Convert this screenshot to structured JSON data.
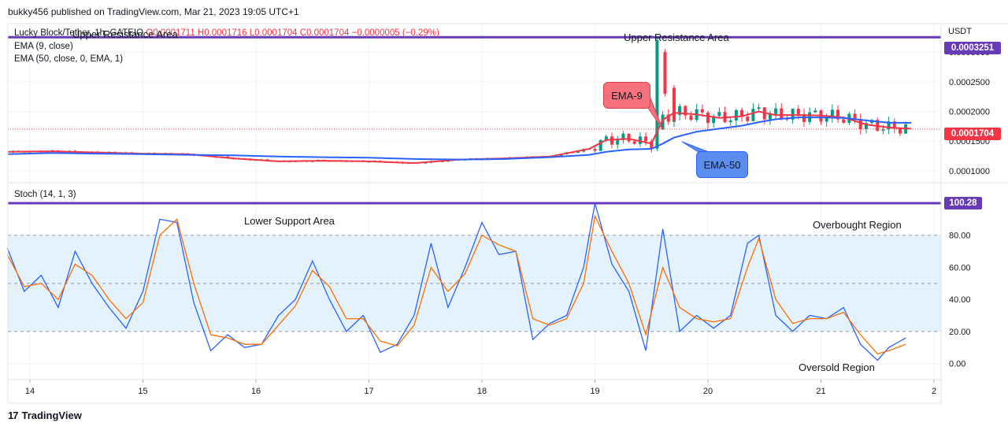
{
  "header": {
    "published": "bukky456 published on TradingView.com, Mar 21, 2023 19:05 UTC+1"
  },
  "legend": {
    "symbol_line": "Lucky Block/Tether, 1h, GATEIO",
    "ohlc_line": "O0.0001711 H0.0001716 L0.0001704 C0.0001704 −0.0000005 (−0.29%)",
    "ema9": "EMA (9, close)",
    "ema50": "EMA (50, close, 0, EMA, 1)",
    "stoch": "Stoch (14, 1, 3)"
  },
  "annotations": {
    "upper_left": "Upper Resistance Area",
    "upper_right": "Upper Resistance Area",
    "ema9_callout": "EMA-9",
    "ema50_callout": "EMA-50",
    "lower_support": "Lower Support Area",
    "overbought": "Overbought Region",
    "oversold": "Oversold Region"
  },
  "price_axis": {
    "currency": "USDT",
    "resistance_tag": "0.0003251",
    "last_price_tag": "0.0001704",
    "stoch_tag": "100.28"
  },
  "colors": {
    "ema9": "#f23645",
    "ema50": "#2962ff",
    "stoch_k": "#2962ff",
    "stoch_d": "#ff6d00",
    "resistance": "#673ab7",
    "bull": "#089981",
    "bear": "#f23645",
    "band": "#e3f2fd"
  },
  "footer": {
    "brand": "TradingView"
  },
  "chart_data": [
    {
      "type": "line",
      "title": "Lucky Block/Tether, 1h, GATEIO",
      "xlabel": "",
      "ylabel": "USDT",
      "x_ticks": [
        "14",
        "15",
        "16",
        "17",
        "18",
        "19",
        "20",
        "21",
        "2"
      ],
      "y_ticks": [
        "0.0003000",
        "0.0002500",
        "0.0002000",
        "0.0001500",
        "0.0001000"
      ],
      "ylim": [
        8e-05,
        0.000348
      ],
      "horizontal_lines": [
        {
          "value": 0.0003251
        }
      ],
      "last_price": 0.0001704,
      "x": [
        13.8,
        14.2,
        14.6,
        15.0,
        15.4,
        15.8,
        16.2,
        16.6,
        17.0,
        17.4,
        17.8,
        18.2,
        18.6,
        18.95,
        19.1,
        19.3,
        19.5,
        19.6,
        19.7,
        19.9,
        20.1,
        20.3,
        20.45,
        20.6,
        20.8,
        21.0,
        21.2,
        21.4,
        21.6,
        21.8
      ],
      "series": [
        {
          "name": "EMA (9, close)",
          "values": [
            0.000132,
            0.000133,
            0.000131,
            0.000129,
            0.000128,
            0.000121,
            0.000116,
            0.000117,
            0.000116,
            0.000113,
            0.000119,
            0.000121,
            0.000124,
            0.000137,
            0.000152,
            0.000154,
            0.000146,
            0.000186,
            0.000198,
            0.000195,
            0.000189,
            0.000192,
            0.0002,
            0.000194,
            0.000194,
            0.000193,
            0.00019,
            0.000178,
            0.000173,
            0.000171
          ]
        },
        {
          "name": "EMA (50, close, 0, EMA, 1)",
          "values": [
            0.000128,
            0.00013,
            0.000129,
            0.000128,
            0.000127,
            0.000126,
            0.000124,
            0.000123,
            0.000122,
            0.00012,
            0.000119,
            0.00012,
            0.000123,
            0.000127,
            0.000132,
            0.000136,
            0.000137,
            0.000146,
            0.000156,
            0.000166,
            0.000171,
            0.000176,
            0.000182,
            0.000187,
            0.00019,
            0.00019,
            0.000189,
            0.000185,
            0.000181,
            0.000181
          ]
        }
      ]
    },
    {
      "type": "line",
      "title": "Stoch (14, 1, 3)",
      "xlabel": "",
      "ylabel": "",
      "y_ticks": [
        "80.00",
        "60.00",
        "40.00",
        "20.00",
        "0.00"
      ],
      "ylim": [
        -10,
        100
      ],
      "bands": [
        20,
        50,
        80
      ],
      "x_ticks": [
        "14",
        "15",
        "16",
        "17",
        "18",
        "19",
        "20",
        "21",
        "2"
      ],
      "x": [
        13.8,
        13.95,
        14.1,
        14.25,
        14.4,
        14.55,
        14.7,
        14.85,
        15.0,
        15.15,
        15.3,
        15.45,
        15.6,
        15.75,
        15.9,
        16.05,
        16.2,
        16.35,
        16.5,
        16.65,
        16.8,
        16.95,
        17.1,
        17.25,
        17.4,
        17.55,
        17.7,
        17.85,
        18.0,
        18.15,
        18.3,
        18.45,
        18.6,
        18.75,
        18.9,
        19.0,
        19.15,
        19.3,
        19.45,
        19.6,
        19.75,
        19.9,
        20.05,
        20.2,
        20.35,
        20.45,
        20.6,
        20.75,
        20.9,
        21.05,
        21.2,
        21.35,
        21.5,
        21.6,
        21.75
      ],
      "series": [
        {
          "name": "K",
          "values": [
            72,
            45,
            55,
            35,
            70,
            50,
            35,
            22,
            45,
            90,
            88,
            38,
            8,
            18,
            10,
            12,
            30,
            40,
            64,
            40,
            20,
            30,
            7,
            12,
            30,
            75,
            35,
            60,
            88,
            68,
            70,
            15,
            25,
            30,
            60,
            100,
            62,
            45,
            8,
            84,
            20,
            30,
            22,
            30,
            75,
            80,
            30,
            20,
            30,
            28,
            35,
            12,
            2,
            10,
            16
          ]
        },
        {
          "name": "D",
          "values": [
            68,
            48,
            50,
            40,
            62,
            55,
            40,
            28,
            38,
            80,
            90,
            50,
            18,
            16,
            12,
            12,
            24,
            36,
            58,
            48,
            28,
            28,
            14,
            11,
            24,
            60,
            45,
            56,
            80,
            74,
            70,
            28,
            24,
            28,
            50,
            92,
            70,
            50,
            18,
            60,
            35,
            28,
            26,
            28,
            60,
            78,
            40,
            25,
            28,
            28,
            32,
            18,
            6,
            8,
            12
          ]
        }
      ]
    }
  ]
}
